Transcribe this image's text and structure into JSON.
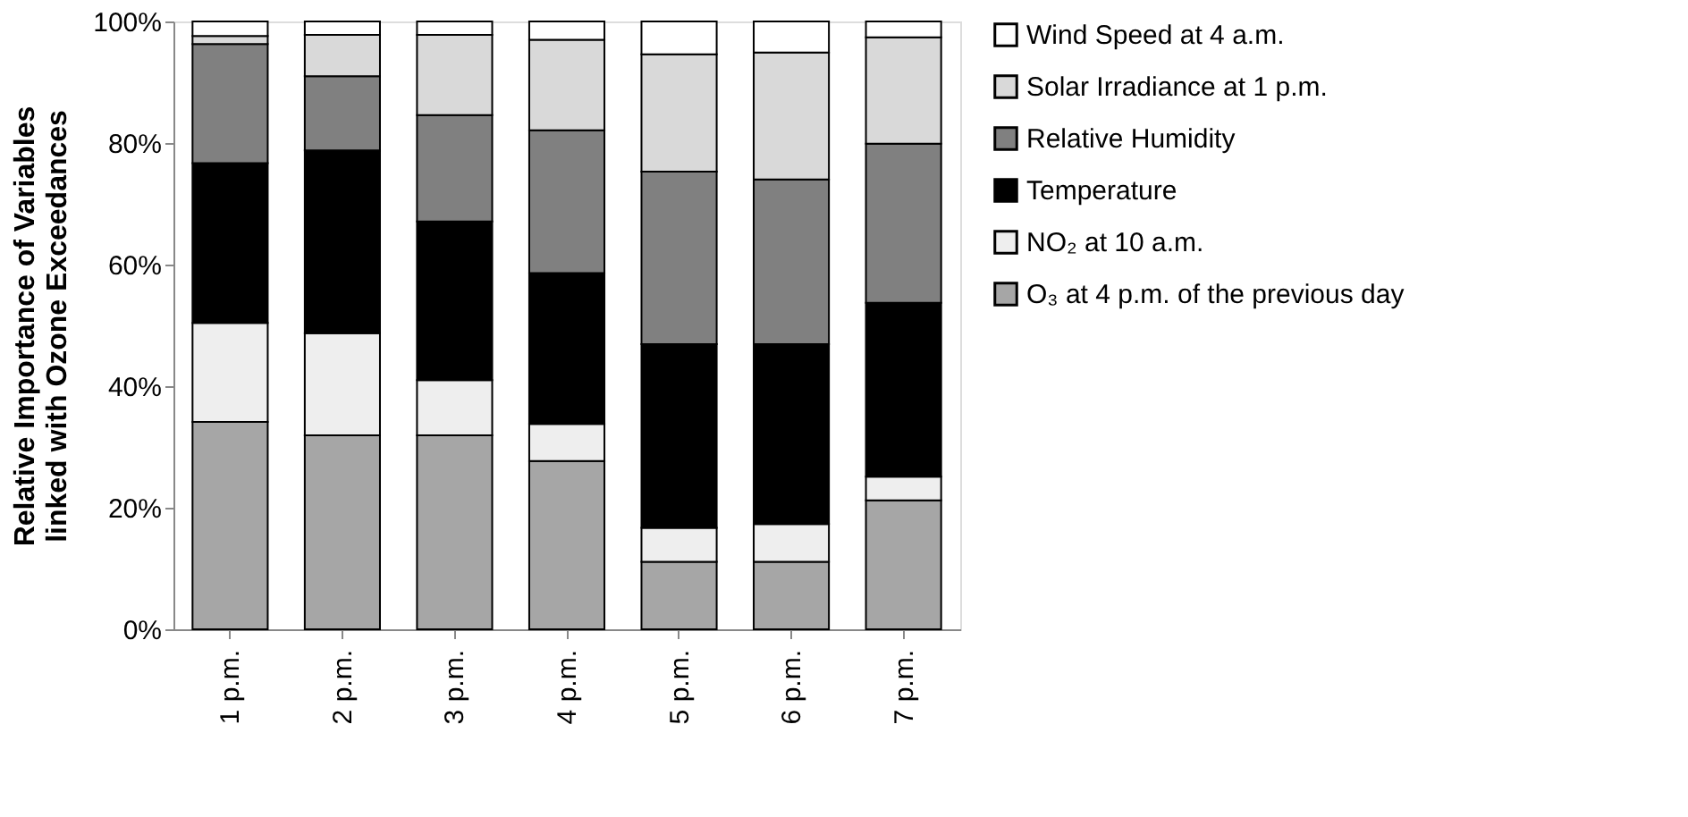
{
  "chart_data": {
    "type": "bar",
    "stacked": true,
    "ylabel": "Relative Importance of Variables\nlinked with Ozone Exceedances",
    "categories": [
      "1 p.m.",
      "2 p.m.",
      "3 p.m.",
      "4 p.m.",
      "5 p.m.",
      "6 p.m.",
      "7 p.m."
    ],
    "series": [
      {
        "name": "O₃ at 4 p.m. of the previous day",
        "color": "#a6a6a6",
        "values": [
          34.1,
          31.9,
          31.9,
          27.7,
          11.1,
          11.1,
          21.2
        ]
      },
      {
        "name": "NO₂ at 10 a.m.",
        "color": "#eeeeee",
        "values": [
          16.3,
          16.8,
          9.1,
          6.1,
          5.6,
          6.2,
          3.9
        ]
      },
      {
        "name": "Temperature",
        "color": "#000000",
        "values": [
          26.3,
          30.1,
          26.1,
          24.8,
          30.2,
          29.6,
          28.6
        ]
      },
      {
        "name": "Relative Humidity",
        "color": "#808080",
        "values": [
          19.6,
          12.2,
          17.5,
          23.5,
          28.4,
          27.1,
          26.2
        ]
      },
      {
        "name": "Solar Irradiance at 1 p.m.",
        "color": "#d9d9d9",
        "values": [
          1.3,
          6.8,
          13.2,
          14.9,
          19.3,
          20.9,
          17.5
        ]
      },
      {
        "name": "Wind Speed at 4 a.m.",
        "color": "#ffffff",
        "values": [
          2.4,
          2.2,
          2.2,
          3.0,
          5.4,
          5.1,
          2.6
        ]
      }
    ],
    "ylim": [
      0,
      100
    ],
    "yticks": [
      {
        "value": 0,
        "label": "0%"
      },
      {
        "value": 20,
        "label": "20%"
      },
      {
        "value": 40,
        "label": "40%"
      },
      {
        "value": 60,
        "label": "60%"
      },
      {
        "value": 80,
        "label": "80%"
      },
      {
        "value": 100,
        "label": "100%"
      }
    ],
    "grid": false,
    "legend": "right"
  }
}
